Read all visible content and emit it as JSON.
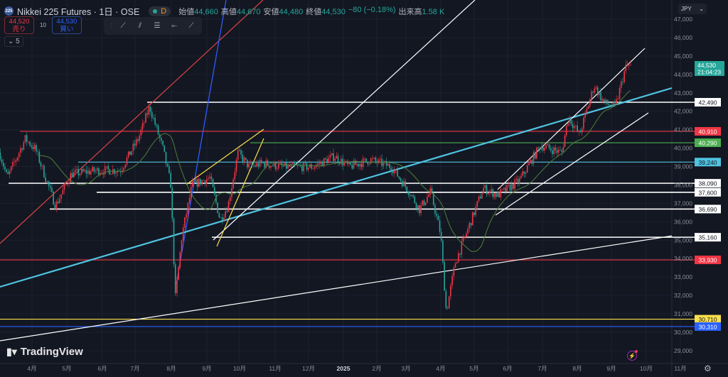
{
  "header": {
    "logo_text": "225",
    "title": "Nikkei 225 Futures · 1日 · OSE",
    "interval_badge": "D",
    "ohlc": [
      {
        "label": "始値",
        "value": "44,660"
      },
      {
        "label": "高値",
        "value": "44,670"
      },
      {
        "label": "安値",
        "value": "44,480"
      },
      {
        "label": "終値",
        "value": "44,530"
      },
      {
        "label": "",
        "value": "−80 (−0.18%)"
      },
      {
        "label": "出来高",
        "value": "1.58 K"
      }
    ]
  },
  "trade": {
    "sell_price": "44,520",
    "sell_label": "売り",
    "spread": "10",
    "buy_price": "44,530",
    "buy_label": "買い"
  },
  "collapse": {
    "icon": "chevron-down-icon",
    "count": "5"
  },
  "toolbar": {
    "icons": [
      "drag-handle-icon",
      "trend-line-icon",
      "parallel-channel-icon",
      "fib-retracement-icon",
      "horizontal-ray-icon",
      "extended-line-icon"
    ]
  },
  "currency": "JPY",
  "branding": "TradingView",
  "colors": {
    "background": "#131722",
    "up": "#f23645",
    "down": "#26a69a",
    "ma": "#4f7f3a"
  },
  "chart_data": {
    "type": "candlestick",
    "symbol": "Nikkei 225 Futures",
    "interval": "1日",
    "ylim": [
      28500,
      47500
    ],
    "y_ticks": [
      "47,000",
      "46,000",
      "45,000",
      "44,000",
      "43,000",
      "42,000",
      "41,000",
      "40,000",
      "39,000",
      "38,000",
      "37,000",
      "36,000",
      "35,000",
      "34,000",
      "33,000",
      "32,000",
      "31,000",
      "30,000",
      "29,000"
    ],
    "x_ticks": [
      "4月",
      "5月",
      "6月",
      "7月",
      "8月",
      "9月",
      "10月",
      "11月",
      "12月",
      "2025",
      "2月",
      "3月",
      "4月",
      "5月",
      "6月",
      "7月",
      "8月",
      "9月",
      "10月",
      "11月"
    ],
    "grid": true,
    "last_price": {
      "value": "44,530",
      "countdown": "21:04:23",
      "color": "#26a69a"
    },
    "approx_close_path": [
      [
        "2024-03-03",
        39750
      ],
      [
        "2024-03-10",
        38400
      ],
      [
        "2024-03-26",
        40500
      ],
      [
        "2024-04-04",
        39950
      ],
      [
        "2024-04-22",
        36860
      ],
      [
        "2024-05-06",
        38600
      ],
      [
        "2024-05-31",
        38790
      ],
      [
        "2024-06-19",
        38800
      ],
      [
        "2024-07-05",
        40520
      ],
      [
        "2024-07-15",
        42250
      ],
      [
        "2024-07-27",
        39950
      ],
      [
        "2024-08-03",
        38000
      ],
      [
        "2024-08-07",
        31850
      ],
      [
        "2024-08-13",
        35300
      ],
      [
        "2024-08-22",
        38000
      ],
      [
        "2024-09-07",
        38400
      ],
      [
        "2024-09-16",
        36100
      ],
      [
        "2024-09-23",
        36860
      ],
      [
        "2024-10-02",
        39750
      ],
      [
        "2024-10-12",
        38980
      ],
      [
        "2024-10-24",
        39170
      ],
      [
        "2024-11-12",
        38980
      ],
      [
        "2024-12-08",
        38980
      ],
      [
        "2024-12-27",
        39560
      ],
      [
        "2025-01-09",
        38980
      ],
      [
        "2025-01-28",
        39370
      ],
      [
        "2025-02-16",
        38980
      ],
      [
        "2025-03-04",
        37630
      ],
      [
        "2025-03-13",
        36670
      ],
      [
        "2025-03-23",
        37630
      ],
      [
        "2025-04-01",
        35320
      ],
      [
        "2025-04-06",
        31080
      ],
      [
        "2025-04-14",
        33780
      ],
      [
        "2025-04-26",
        35710
      ],
      [
        "2025-05-09",
        37820
      ],
      [
        "2025-05-22",
        37440
      ],
      [
        "2025-06-10",
        38210
      ],
      [
        "2025-06-29",
        40140
      ],
      [
        "2025-07-18",
        39750
      ],
      [
        "2025-07-24",
        41680
      ],
      [
        "2025-08-03",
        40720
      ],
      [
        "2025-08-16",
        43400
      ],
      [
        "2025-08-25",
        42450
      ],
      [
        "2025-09-04",
        42250
      ],
      [
        "2025-09-13",
        44370
      ],
      [
        "2025-09-18",
        44530
      ]
    ],
    "horizontal_levels": [
      {
        "value": 42490,
        "label": "42,490",
        "color": "#ffffff"
      },
      {
        "value": 40910,
        "label": "40,910",
        "color": "#f23645"
      },
      {
        "value": 40290,
        "label": "40,290",
        "color": "#4caf50"
      },
      {
        "value": 39240,
        "label": "39,240",
        "color": "#4fc3e0"
      },
      {
        "value": 38090,
        "label": "38,090",
        "color": "#ffffff"
      },
      {
        "value": 37600,
        "label": "37,600",
        "color": "#ffffff"
      },
      {
        "value": 36690,
        "label": "36,690",
        "color": "#ffffff"
      },
      {
        "value": 35160,
        "label": "35,160",
        "color": "#ffffff"
      },
      {
        "value": 33930,
        "label": "33,930",
        "color": "#f23645"
      },
      {
        "value": 30710,
        "label": "30,710",
        "color": "#fbe04c"
      },
      {
        "value": 30310,
        "label": "30,310",
        "color": "#2962ff"
      }
    ]
  }
}
